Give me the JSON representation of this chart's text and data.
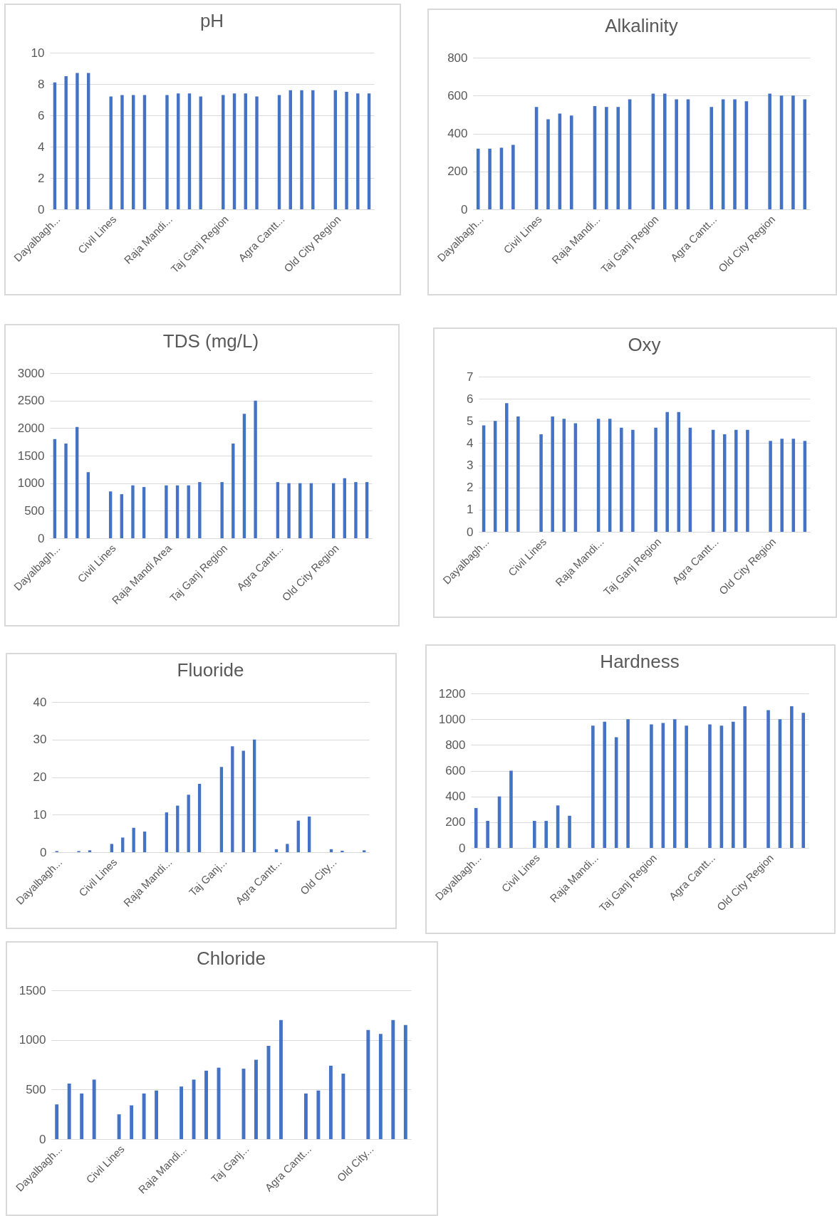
{
  "chart_data": [
    {
      "type": "bar",
      "title": "pH",
      "categories": [
        "Dayalbagh...",
        null,
        null,
        null,
        null,
        "Civil Lines",
        null,
        null,
        null,
        null,
        "Raja Mandi...",
        null,
        null,
        null,
        null,
        "Taj Ganj Region",
        null,
        null,
        null,
        null,
        "Agra Cantt...",
        null,
        null,
        null,
        null,
        "Old City Region",
        null,
        null,
        null
      ],
      "values": [
        8.1,
        8.5,
        8.7,
        8.7,
        null,
        7.2,
        7.3,
        7.3,
        7.3,
        null,
        7.3,
        7.4,
        7.4,
        7.2,
        null,
        7.3,
        7.4,
        7.4,
        7.2,
        null,
        7.3,
        7.6,
        7.6,
        7.6,
        null,
        7.6,
        7.5,
        7.4,
        7.4
      ],
      "color": "#4472c4",
      "ylim": [
        0,
        10
      ],
      "yticks": [
        0,
        2,
        4,
        6,
        8,
        10
      ],
      "grid": "y"
    },
    {
      "type": "bar",
      "title": "Alkalinity",
      "categories": [
        "Dayalbagh...",
        null,
        null,
        null,
        null,
        "Civil Lines",
        null,
        null,
        null,
        null,
        "Raja Mandi...",
        null,
        null,
        null,
        null,
        "Taj Ganj Region",
        null,
        null,
        null,
        null,
        "Agra Cantt...",
        null,
        null,
        null,
        null,
        "Old City Region",
        null,
        null,
        null
      ],
      "values": [
        320,
        320,
        325,
        340,
        null,
        540,
        475,
        505,
        495,
        null,
        545,
        540,
        540,
        580,
        null,
        610,
        610,
        580,
        580,
        null,
        540,
        580,
        580,
        570,
        null,
        610,
        600,
        600,
        580
      ],
      "color": "#4472c4",
      "ylim": [
        0,
        800
      ],
      "yticks": [
        0,
        200,
        400,
        600,
        800
      ],
      "grid": "y"
    },
    {
      "type": "bar",
      "title": "TDS (mg/L)",
      "categories": [
        "Dayalbagh...",
        null,
        null,
        null,
        null,
        "Civil Lines",
        null,
        null,
        null,
        null,
        "Raja Mandi Area",
        null,
        null,
        null,
        null,
        "Taj Ganj Region",
        null,
        null,
        null,
        null,
        "Agra Cantt...",
        null,
        null,
        null,
        null,
        "Old City Region",
        null,
        null,
        null
      ],
      "values": [
        1800,
        1720,
        2020,
        1200,
        null,
        850,
        800,
        960,
        930,
        null,
        960,
        960,
        960,
        1020,
        null,
        1020,
        1720,
        2260,
        2500,
        null,
        1020,
        1000,
        1000,
        1000,
        null,
        1000,
        1090,
        1020,
        1020
      ],
      "color": "#4472c4",
      "ylim": [
        0,
        3000
      ],
      "yticks": [
        0,
        500,
        1000,
        1500,
        2000,
        2500,
        3000
      ],
      "grid": "y"
    },
    {
      "type": "bar",
      "title": "Oxy",
      "categories": [
        "Dayalbagh...",
        null,
        null,
        null,
        null,
        "Civil Lines",
        null,
        null,
        null,
        null,
        "Raja Mandi...",
        null,
        null,
        null,
        null,
        "Taj Ganj Region",
        null,
        null,
        null,
        null,
        "Agra Cantt...",
        null,
        null,
        null,
        null,
        "Old City Region",
        null,
        null,
        null
      ],
      "values": [
        4.8,
        5.0,
        5.8,
        5.2,
        null,
        4.4,
        5.2,
        5.1,
        4.9,
        null,
        5.1,
        5.1,
        4.7,
        4.6,
        null,
        4.7,
        5.4,
        5.4,
        4.7,
        null,
        4.6,
        4.4,
        4.6,
        4.6,
        null,
        4.1,
        4.2,
        4.2,
        4.1
      ],
      "color": "#4472c4",
      "ylim": [
        0,
        7
      ],
      "yticks": [
        0,
        1,
        2,
        3,
        4,
        5,
        6,
        7
      ],
      "grid": "y"
    },
    {
      "type": "bar",
      "title": "Fluoride",
      "categories": [
        "Dayalbagh...",
        null,
        null,
        null,
        null,
        "Civil Lines",
        null,
        null,
        null,
        null,
        "Raja Mandi...",
        null,
        null,
        null,
        null,
        "Taj Ganj...",
        null,
        null,
        null,
        null,
        "Agra Cantt...",
        null,
        null,
        null,
        null,
        "Old City...",
        null,
        null,
        null
      ],
      "values": [
        0.3,
        0,
        0.3,
        0.5,
        null,
        2.2,
        3.9,
        6.5,
        5.5,
        null,
        10.6,
        12.4,
        15.3,
        18.2,
        null,
        22.7,
        28.2,
        27,
        30,
        null,
        0.8,
        2.2,
        8.4,
        9.5,
        null,
        0.8,
        0.4,
        0,
        0.5
      ],
      "color": "#4472c4",
      "ylim": [
        0,
        40
      ],
      "yticks": [
        0,
        10,
        20,
        30,
        40
      ],
      "grid": "y"
    },
    {
      "type": "bar",
      "title": "Hardness",
      "categories": [
        "Dayalbagh...",
        null,
        null,
        null,
        null,
        "Civil Lines",
        null,
        null,
        null,
        null,
        "Raja Mandi...",
        null,
        null,
        null,
        null,
        "Taj Ganj Region",
        null,
        null,
        null,
        null,
        "Agra Cantt...",
        null,
        null,
        null,
        null,
        "Old City Region",
        null,
        null,
        null
      ],
      "values": [
        310,
        210,
        400,
        600,
        null,
        210,
        210,
        330,
        250,
        null,
        950,
        980,
        860,
        1000,
        null,
        960,
        970,
        1000,
        950,
        null,
        960,
        950,
        980,
        1100,
        null,
        1070,
        1000,
        1100,
        1050
      ],
      "color": "#4472c4",
      "ylim": [
        0,
        1200
      ],
      "yticks": [
        0,
        200,
        400,
        600,
        800,
        1000,
        1200
      ],
      "grid": "y"
    },
    {
      "type": "bar",
      "title": "Chloride",
      "categories": [
        "Dayalbagh...",
        null,
        null,
        null,
        null,
        "Civil Lines",
        null,
        null,
        null,
        null,
        "Raja Mandi...",
        null,
        null,
        null,
        null,
        "Taj Ganj...",
        null,
        null,
        null,
        null,
        "Agra Cantt...",
        null,
        null,
        null,
        null,
        "Old City...",
        null,
        null,
        null
      ],
      "values": [
        350,
        560,
        460,
        600,
        null,
        250,
        340,
        460,
        490,
        null,
        530,
        600,
        690,
        720,
        null,
        710,
        800,
        940,
        1200,
        null,
        460,
        490,
        740,
        660,
        null,
        1100,
        1060,
        1200,
        1150
      ],
      "color": "#4472c4",
      "ylim": [
        0,
        1500
      ],
      "yticks": [
        0,
        500,
        1000,
        1500
      ],
      "grid": "y"
    }
  ]
}
